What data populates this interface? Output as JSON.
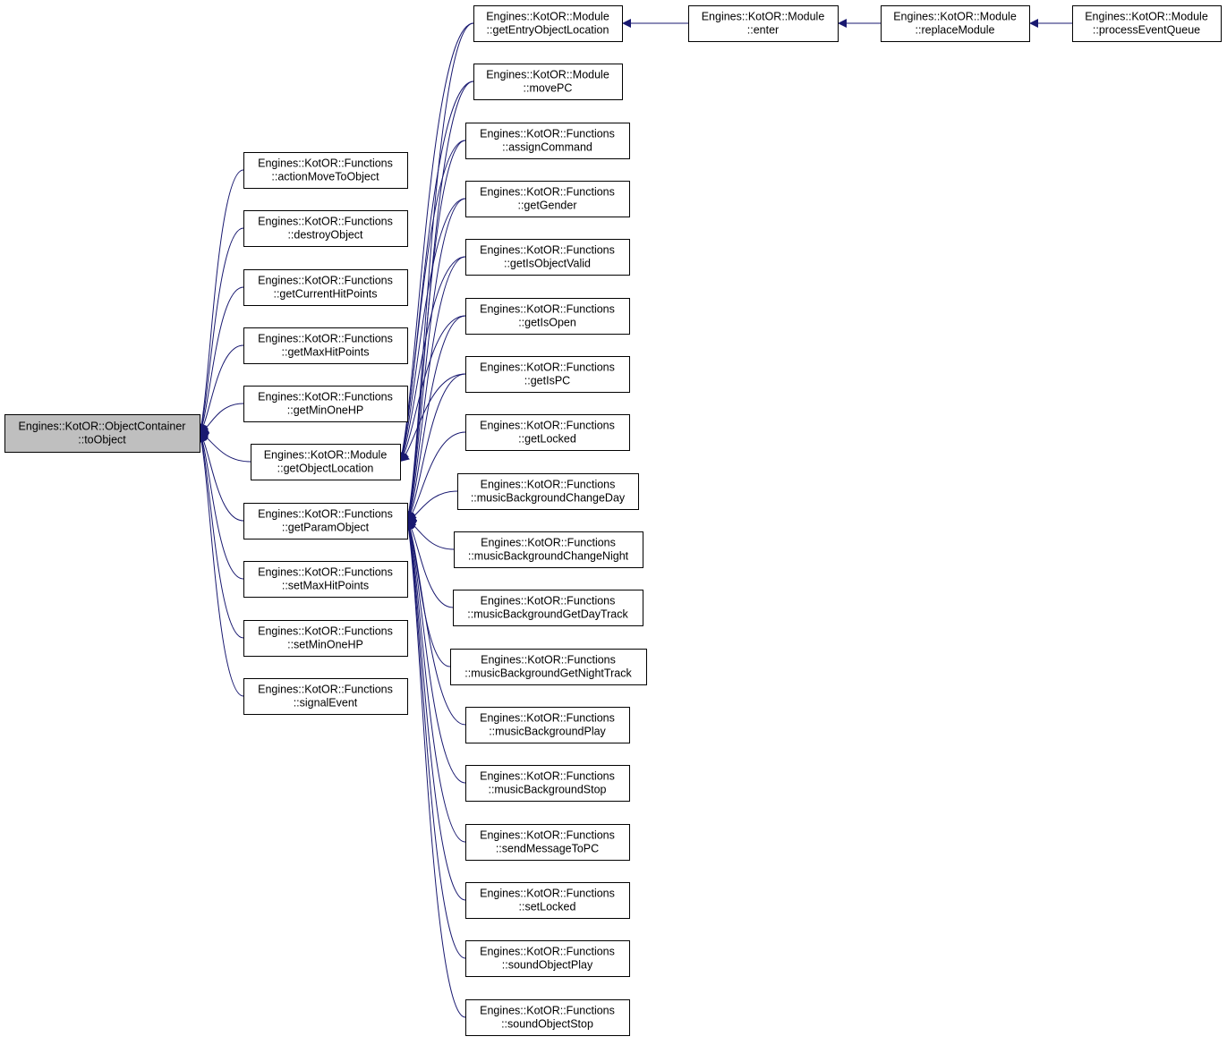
{
  "nodes": [
    {
      "lines": [
        "Engines::KotOR::ObjectContainer",
        "::toObject"
      ]
    },
    {
      "lines": [
        "Engines::KotOR::Functions",
        "::actionMoveToObject"
      ]
    },
    {
      "lines": [
        "Engines::KotOR::Functions",
        "::destroyObject"
      ]
    },
    {
      "lines": [
        "Engines::KotOR::Functions",
        "::getCurrentHitPoints"
      ]
    },
    {
      "lines": [
        "Engines::KotOR::Functions",
        "::getMaxHitPoints"
      ]
    },
    {
      "lines": [
        "Engines::KotOR::Functions",
        "::getMinOneHP"
      ]
    },
    {
      "lines": [
        "Engines::KotOR::Module",
        "::getObjectLocation"
      ]
    },
    {
      "lines": [
        "Engines::KotOR::Functions",
        "::getParamObject"
      ]
    },
    {
      "lines": [
        "Engines::KotOR::Functions",
        "::setMaxHitPoints"
      ]
    },
    {
      "lines": [
        "Engines::KotOR::Functions",
        "::setMinOneHP"
      ]
    },
    {
      "lines": [
        "Engines::KotOR::Functions",
        "::signalEvent"
      ]
    },
    {
      "lines": [
        "Engines::KotOR::Module",
        "::getEntryObjectLocation"
      ]
    },
    {
      "lines": [
        "Engines::KotOR::Module",
        "::movePC"
      ]
    },
    {
      "lines": [
        "Engines::KotOR::Functions",
        "::assignCommand"
      ]
    },
    {
      "lines": [
        "Engines::KotOR::Functions",
        "::getGender"
      ]
    },
    {
      "lines": [
        "Engines::KotOR::Functions",
        "::getIsObjectValid"
      ]
    },
    {
      "lines": [
        "Engines::KotOR::Functions",
        "::getIsOpen"
      ]
    },
    {
      "lines": [
        "Engines::KotOR::Functions",
        "::getIsPC"
      ]
    },
    {
      "lines": [
        "Engines::KotOR::Functions",
        "::getLocked"
      ]
    },
    {
      "lines": [
        "Engines::KotOR::Functions",
        "::musicBackgroundChangeDay"
      ]
    },
    {
      "lines": [
        "Engines::KotOR::Functions",
        "::musicBackgroundChangeNight"
      ]
    },
    {
      "lines": [
        "Engines::KotOR::Functions",
        "::musicBackgroundGetDayTrack"
      ]
    },
    {
      "lines": [
        "Engines::KotOR::Functions",
        "::musicBackgroundGetNightTrack"
      ]
    },
    {
      "lines": [
        "Engines::KotOR::Functions",
        "::musicBackgroundPlay"
      ]
    },
    {
      "lines": [
        "Engines::KotOR::Functions",
        "::musicBackgroundStop"
      ]
    },
    {
      "lines": [
        "Engines::KotOR::Functions",
        "::sendMessageToPC"
      ]
    },
    {
      "lines": [
        "Engines::KotOR::Functions",
        "::setLocked"
      ]
    },
    {
      "lines": [
        "Engines::KotOR::Functions",
        "::soundObjectPlay"
      ]
    },
    {
      "lines": [
        "Engines::KotOR::Functions",
        "::soundObjectStop"
      ]
    },
    {
      "lines": [
        "Engines::KotOR::Module",
        "::enter"
      ]
    },
    {
      "lines": [
        "Engines::KotOR::Module",
        "::replaceModule"
      ]
    },
    {
      "lines": [
        "Engines::KotOR::Module",
        "::processEventQueue"
      ]
    }
  ]
}
